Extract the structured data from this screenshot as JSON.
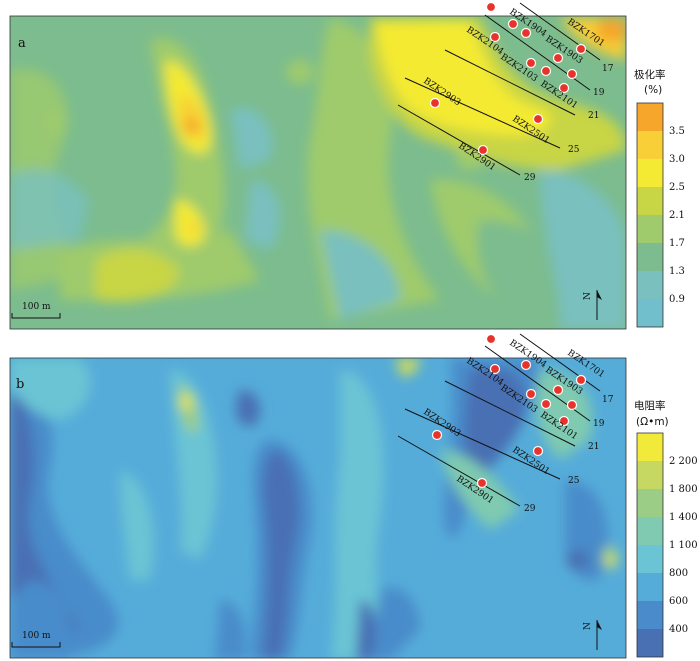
{
  "panels": [
    {
      "letter": "a",
      "legend": {
        "title": "极化率",
        "unit": "(%)",
        "classes": [
          {
            "color": "#f5a62b",
            "tick": "3.5"
          },
          {
            "color": "#f8cf36",
            "tick": "3.0"
          },
          {
            "color": "#f4ea33",
            "tick": "2.5"
          },
          {
            "color": "#c8d545",
            "tick": "2.1"
          },
          {
            "color": "#9fcb6c",
            "tick": "1.7"
          },
          {
            "color": "#7cbc8e",
            "tick": "1.3"
          },
          {
            "color": "#79c0bf",
            "tick": "0.9"
          },
          {
            "color": "#71bfcd",
            "tick": ""
          }
        ]
      },
      "scale_label": "100 m",
      "north_label": "N"
    },
    {
      "letter": "b",
      "legend": {
        "title": "电阻率",
        "unit": "(Ω•m)",
        "classes": [
          {
            "color": "#f2ea3a",
            "tick": "2 200"
          },
          {
            "color": "#c6d862",
            "tick": "1 800"
          },
          {
            "color": "#9ccd86",
            "tick": "1 400"
          },
          {
            "color": "#7fcab0",
            "tick": "1 100"
          },
          {
            "color": "#6bc4d4",
            "tick": "800"
          },
          {
            "color": "#55acd9",
            "tick": "600"
          },
          {
            "color": "#4a8ccb",
            "tick": "400"
          },
          {
            "color": "#4870b3",
            "tick": ""
          }
        ]
      },
      "scale_label": "100 m",
      "north_label": "N"
    }
  ],
  "boreholes": [
    "BZK1701",
    "BZK1904",
    "BZK1903",
    "BZK2104",
    "BZK2103",
    "BZK2101",
    "BZK2903",
    "BZK2501",
    "BZK2901"
  ],
  "profile_lines": [
    "17",
    "19",
    "21",
    "25",
    "29"
  ]
}
